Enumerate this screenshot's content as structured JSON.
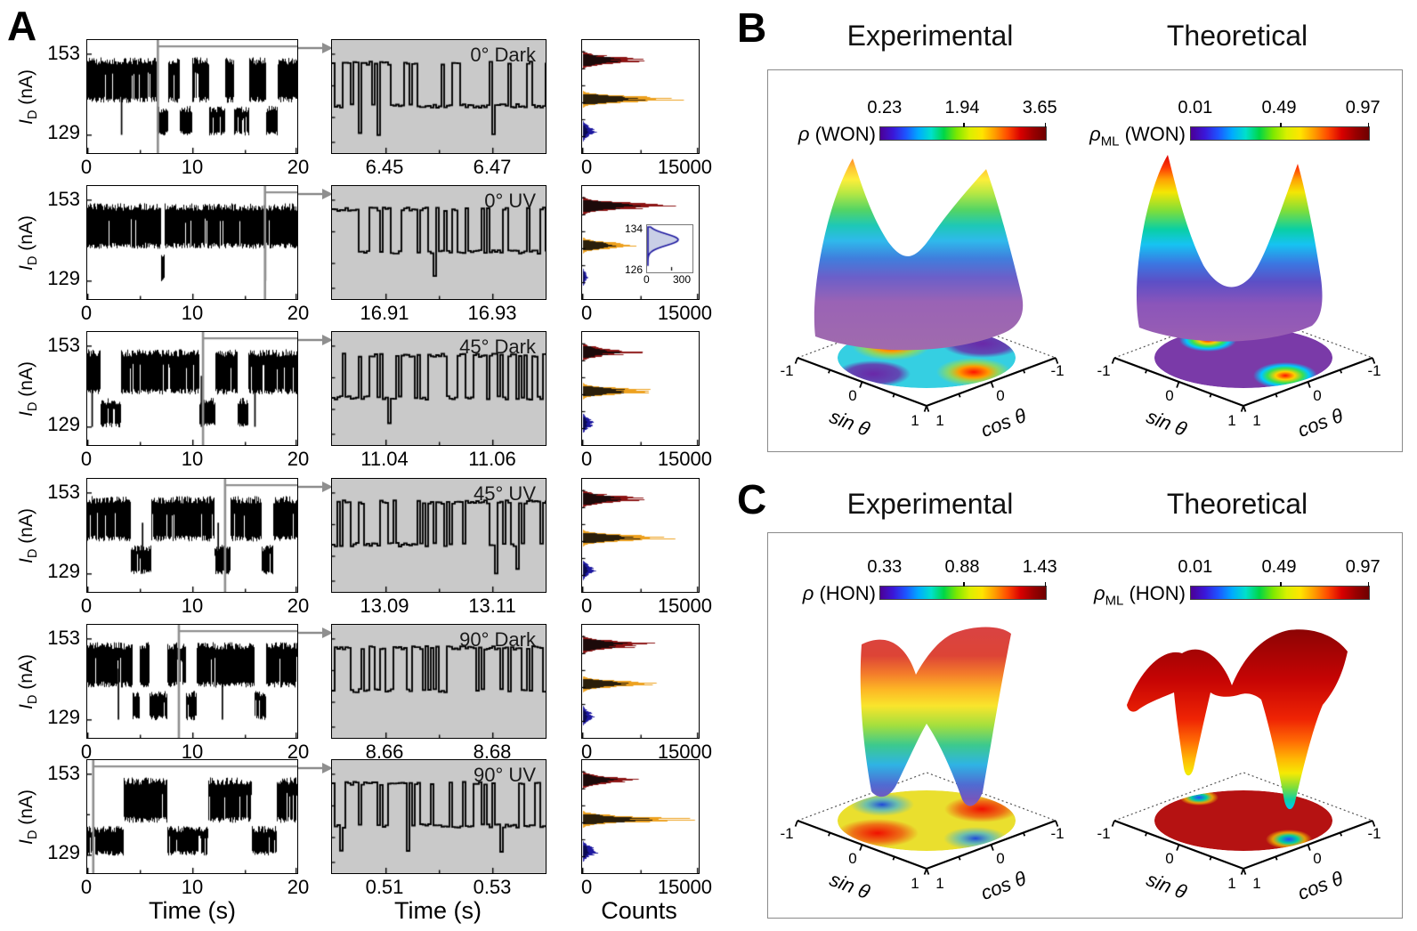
{
  "panel_labels": {
    "a": "A",
    "b": "B",
    "c": "C"
  },
  "colors": {
    "hist_red": "#8c1414",
    "hist_orange": "#eda11f",
    "hist_blue": "#1d189f",
    "zoom_bg": "#c9c9c9",
    "arrow": "#8f8f8f",
    "colorbar_gradient": [
      "#4b0096",
      "#3b16d8",
      "#1d54ff",
      "#00aaff",
      "#00e0cc",
      "#00d646",
      "#7de800",
      "#d9f000",
      "#ffe400",
      "#ff9c00",
      "#ff4a00",
      "#d90000",
      "#9b0000",
      "#6e0000"
    ]
  },
  "chart_data": [
    {
      "id": "A_time_traces",
      "type": "line",
      "ylabel_i": "I",
      "ylabel_sub": "D",
      "ylabel_rest": " (nA)",
      "xlabel": "Time (s)",
      "x_range_s": [
        0,
        20
      ],
      "x_tick_labels": [
        "0",
        "10",
        "20"
      ],
      "y_tick_labels": [
        "153",
        "129"
      ],
      "y_levels_nA": {
        "high_band": [
          138.5,
          152.0
        ],
        "low_band": [
          128.6,
          137.5
        ]
      },
      "rows": [
        {
          "condition": "0° Dark",
          "marker_s": 6.7,
          "low_intervals_s": [
            [
              6.6,
              7.7
            ],
            [
              8.8,
              10.0
            ],
            [
              11.6,
              13.1
            ],
            [
              13.9,
              15.4
            ],
            [
              17.0,
              18.1
            ]
          ],
          "spike_times_s": [
            3.2
          ],
          "seed": 11
        },
        {
          "condition": "0° UV",
          "marker_s": 16.9,
          "low_intervals_s": [
            [
              6.95,
              7.3
            ]
          ],
          "spike_times_s": [
            16.9
          ],
          "seed": 22
        },
        {
          "condition": "45° Dark",
          "marker_s": 11.0,
          "low_intervals_s": [
            [
              1.2,
              3.2
            ],
            [
              10.6,
              12.2
            ],
            [
              14.3,
              15.3
            ]
          ],
          "spike_times_s": [
            0.4,
            10.8,
            15.9
          ],
          "seed": 33
        },
        {
          "condition": "45° UV",
          "marker_s": 13.1,
          "low_intervals_s": [
            [
              4.1,
              6.1
            ],
            [
              12.1,
              13.6
            ],
            [
              16.6,
              17.7
            ]
          ],
          "spike_times_s": [
            5.2,
            12.4
          ],
          "seed": 44
        },
        {
          "condition": "90° Dark",
          "marker_s": 8.7,
          "low_intervals_s": [
            [
              4.3,
              5.0
            ],
            [
              5.9,
              7.6
            ],
            [
              9.4,
              10.4
            ],
            [
              15.9,
              17.0
            ]
          ],
          "spike_times_s": [
            2.9,
            12.8
          ],
          "seed": 55
        },
        {
          "condition": "90° UV",
          "marker_s": 0.55,
          "low_intervals_s": [
            [
              0.0,
              3.4
            ],
            [
              7.6,
              11.5
            ],
            [
              15.6,
              18.0
            ]
          ],
          "spike_times_s": [],
          "seed": 66
        }
      ]
    },
    {
      "id": "A_zoom_traces",
      "type": "line",
      "xlabel": "Time (s)",
      "rows": [
        {
          "condition": "0° Dark",
          "x_tick_labels": [
            "6.45",
            "6.47"
          ],
          "start_high": true,
          "flip_frac": 0.42,
          "seed": 101
        },
        {
          "condition": "0° UV",
          "x_tick_labels": [
            "16.91",
            "16.93"
          ],
          "start_high": true,
          "flip_frac": 0.6,
          "seed": 102
        },
        {
          "condition": "45° Dark",
          "x_tick_labels": [
            "11.04",
            "11.06"
          ],
          "start_high": false,
          "flip_frac": 0.3,
          "seed": 103
        },
        {
          "condition": "45° UV",
          "x_tick_labels": [
            "13.09",
            "13.11"
          ],
          "start_high": false,
          "flip_frac": 0.42,
          "seed": 104
        },
        {
          "condition": "90° Dark",
          "x_tick_labels": [
            "8.66",
            "8.68"
          ],
          "start_high": false,
          "flip_frac": 0.28,
          "seed": 105
        },
        {
          "condition": "90° UV",
          "x_tick_labels": [
            "0.51",
            "0.53"
          ],
          "start_high": true,
          "flip_frac": 0.42,
          "seed": 106
        }
      ]
    },
    {
      "id": "A_histograms",
      "type": "area",
      "xlabel": "Counts",
      "x_tick_labels": [
        "0",
        "15000"
      ],
      "x_max_counts": 15000,
      "peak_y_fractions": {
        "red": 0.17,
        "orange": 0.52,
        "blue": 0.8
      },
      "rows": [
        {
          "red_counts": 7800,
          "orange_counts": 11800,
          "blue_counts": 1600
        },
        {
          "red_counts": 10200,
          "orange_counts": 7000,
          "blue_counts": 600,
          "inset": {
            "y_tick_labels": [
              "134",
              "126"
            ],
            "x_tick_labels": [
              "0",
              "300"
            ],
            "peak_counts": 220
          }
        },
        {
          "red_counts": 6800,
          "orange_counts": 9200,
          "blue_counts": 1300
        },
        {
          "red_counts": 7800,
          "orange_counts": 10800,
          "blue_counts": 1500
        },
        {
          "red_counts": 9200,
          "orange_counts": 8800,
          "blue_counts": 1300
        },
        {
          "red_counts": 6200,
          "orange_counts": 13200,
          "blue_counts": 1800
        }
      ]
    },
    {
      "id": "B_surfaces",
      "type": "surface",
      "col_headers": [
        "Experimental",
        "Theoretical"
      ],
      "plots": [
        {
          "colorbar": {
            "label_base": "ρ",
            "label_sub": "",
            "label_rest": " (WON)",
            "tick_labels": [
              "0.23",
              "1.94",
              "3.65"
            ],
            "range": [
              0.23,
              3.65
            ]
          },
          "description": "twisted saddle surface, purple base rising to orange peaks; projection disk with red hotspots upper-left and lower-right on cyan/purple background"
        },
        {
          "colorbar": {
            "label_base": "ρ",
            "label_sub": "ML",
            "label_rest": " (WON)",
            "tick_labels": [
              "0.01",
              "0.49",
              "0.97"
            ],
            "range": [
              0.01,
              0.97
            ]
          },
          "description": "two sharp red-tipped peaks over purple base; projection mostly purple with two small rainbow hotspots"
        }
      ],
      "axes": {
        "left_label": "sin θ",
        "right_label": "cos θ",
        "left_ticks": [
          "-1",
          "0",
          "1"
        ],
        "right_ticks": [
          "1",
          "0",
          "-1"
        ],
        "range": [
          -1,
          1
        ]
      }
    },
    {
      "id": "C_surfaces",
      "type": "surface",
      "col_headers": [
        "Experimental",
        "Theoretical"
      ],
      "plots": [
        {
          "colorbar": {
            "label_base": "ρ",
            "label_sub": "",
            "label_rest": " (HON)",
            "tick_labels": [
              "0.33",
              "0.88",
              "1.43"
            ],
            "range": [
              0.33,
              1.43
            ]
          },
          "description": "crossed twisted wings, red tops fading to purple bottom tips; projection disk yellow with red and blue lobes"
        },
        {
          "colorbar": {
            "label_base": "ρ",
            "label_sub": "ML",
            "label_rest": " (HON)",
            "tick_labels": [
              "0.01",
              "0.49",
              "0.97"
            ],
            "range": [
              0.01,
              0.97
            ]
          },
          "description": "broad dark-red dome with two narrow valleys dipping to cyan; projection dark red with two small blue-green hotspots"
        }
      ],
      "axes": {
        "left_label": "sin θ",
        "right_label": "cos θ",
        "left_ticks": [
          "-1",
          "0",
          "1"
        ],
        "right_ticks": [
          "1",
          "0",
          "-1"
        ],
        "range": [
          -1,
          1
        ]
      }
    }
  ]
}
